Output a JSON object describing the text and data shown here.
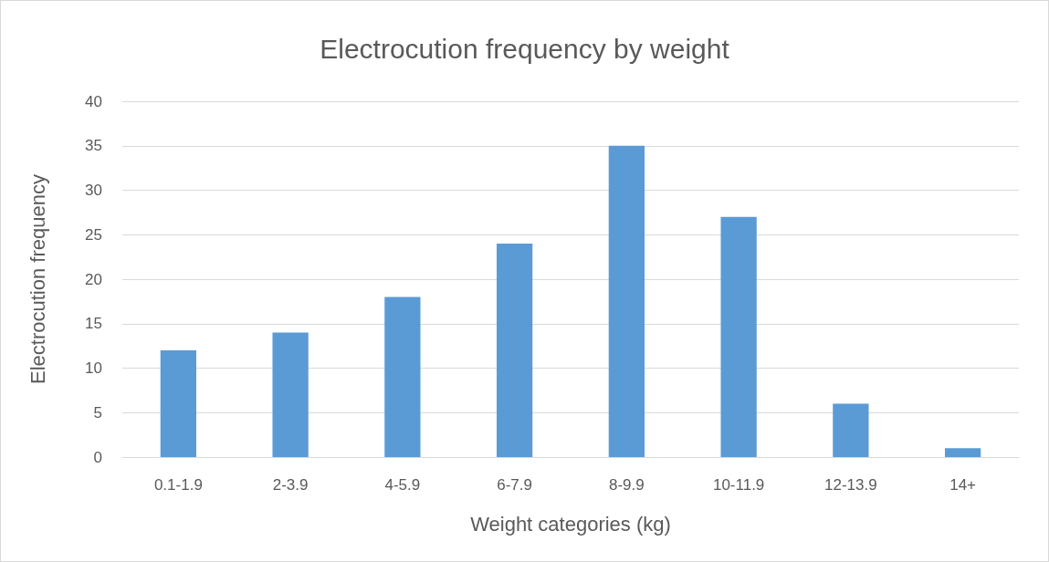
{
  "chart_data": {
    "type": "bar",
    "title": "Electrocution frequency by weight",
    "xlabel": "Weight categories (kg)",
    "ylabel": "Electrocution frequency",
    "categories": [
      "0.1-1.9",
      "2-3.9",
      "4-5.9",
      "6-7.9",
      "8-9.9",
      "10-11.9",
      "12-13.9",
      "14+"
    ],
    "values": [
      12,
      14,
      18,
      24,
      35,
      27,
      6,
      1
    ],
    "color": "#5b9bd5",
    "ylim": [
      0,
      40
    ],
    "yticks": [
      0,
      5,
      10,
      15,
      20,
      25,
      30,
      35,
      40
    ],
    "grid": "y"
  }
}
